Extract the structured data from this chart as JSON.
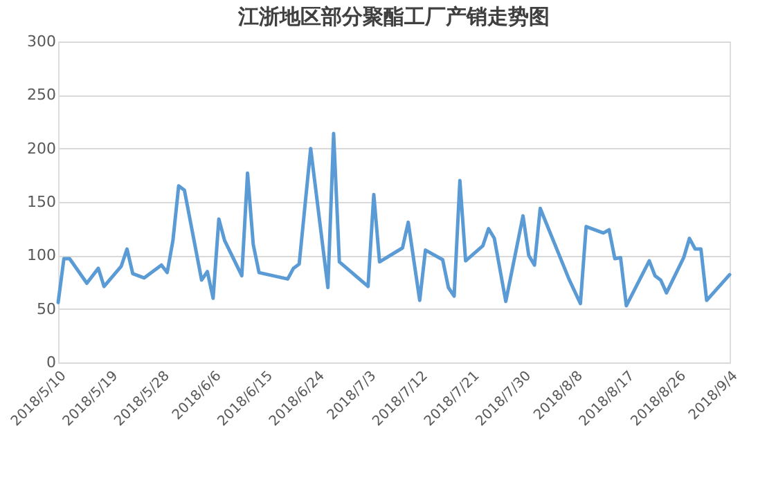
{
  "chart_data": {
    "type": "line",
    "title": "江浙地区部分聚酯工厂产销走势图",
    "x": [
      "2018-05-10",
      "2018-05-11",
      "2018-05-12",
      "2018-05-15",
      "2018-05-17",
      "2018-05-18",
      "2018-05-21",
      "2018-05-22",
      "2018-05-23",
      "2018-05-25",
      "2018-05-28",
      "2018-05-29",
      "2018-05-30",
      "2018-05-31",
      "2018-06-01",
      "2018-06-04",
      "2018-06-05",
      "2018-06-06",
      "2018-06-07",
      "2018-06-08",
      "2018-06-11",
      "2018-06-12",
      "2018-06-13",
      "2018-06-14",
      "2018-06-19",
      "2018-06-20",
      "2018-06-21",
      "2018-06-23",
      "2018-06-26",
      "2018-06-27",
      "2018-06-28",
      "2018-07-03",
      "2018-07-04",
      "2018-07-05",
      "2018-07-09",
      "2018-07-10",
      "2018-07-12",
      "2018-07-13",
      "2018-07-16",
      "2018-07-17",
      "2018-07-18",
      "2018-07-19",
      "2018-07-20",
      "2018-07-23",
      "2018-07-24",
      "2018-07-25",
      "2018-07-27",
      "2018-07-30",
      "2018-07-31",
      "2018-08-01",
      "2018-08-02",
      "2018-08-07",
      "2018-08-09",
      "2018-08-10",
      "2018-08-13",
      "2018-08-14",
      "2018-08-15",
      "2018-08-16",
      "2018-08-17",
      "2018-08-21",
      "2018-08-22",
      "2018-08-23",
      "2018-08-24",
      "2018-08-27",
      "2018-08-28",
      "2018-08-29",
      "2018-08-30",
      "2018-08-31",
      "2018-09-04"
    ],
    "series": [
      {
        "color": "#5b9bd5",
        "values": [
          56,
          97,
          97,
          74,
          88,
          71,
          90,
          106,
          83,
          79,
          91,
          84,
          114,
          165,
          161,
          77,
          85,
          60,
          134,
          114,
          81,
          177,
          110,
          84,
          78,
          88,
          92,
          200,
          70,
          214,
          94,
          71,
          157,
          94,
          107,
          131,
          58,
          105,
          96,
          70,
          62,
          170,
          95,
          109,
          125,
          116,
          57,
          137,
          100,
          91,
          144,
          78,
          55,
          127,
          121,
          124,
          97,
          98,
          53,
          95,
          81,
          77,
          65,
          98,
          116,
          106,
          106,
          58,
          82
        ]
      }
    ],
    "xlim": [
      "2018-05-10",
      "2018-09-04"
    ],
    "xticks": [
      {
        "value": "2018-05-10",
        "label": "2018/5/10"
      },
      {
        "value": "2018-05-19",
        "label": "2018/5/19"
      },
      {
        "value": "2018-05-28",
        "label": "2018/5/28"
      },
      {
        "value": "2018-06-06",
        "label": "2018/6/6"
      },
      {
        "value": "2018-06-15",
        "label": "2018/6/15"
      },
      {
        "value": "2018-06-24",
        "label": "2018/6/24"
      },
      {
        "value": "2018-07-03",
        "label": "2018/7/3"
      },
      {
        "value": "2018-07-12",
        "label": "2018/7/12"
      },
      {
        "value": "2018-07-21",
        "label": "2018/7/21"
      },
      {
        "value": "2018-07-30",
        "label": "2018/7/30"
      },
      {
        "value": "2018-08-08",
        "label": "2018/8/8"
      },
      {
        "value": "2018-08-17",
        "label": "2018/8/17"
      },
      {
        "value": "2018-08-26",
        "label": "2018/8/26"
      },
      {
        "value": "2018-09-04",
        "label": "2018/9/4"
      }
    ],
    "ylim": [
      0,
      300
    ],
    "yticks": [
      0,
      50,
      100,
      150,
      200,
      250,
      300
    ],
    "grid": "y",
    "legend": false,
    "marker": "none",
    "line_style": "solid"
  }
}
